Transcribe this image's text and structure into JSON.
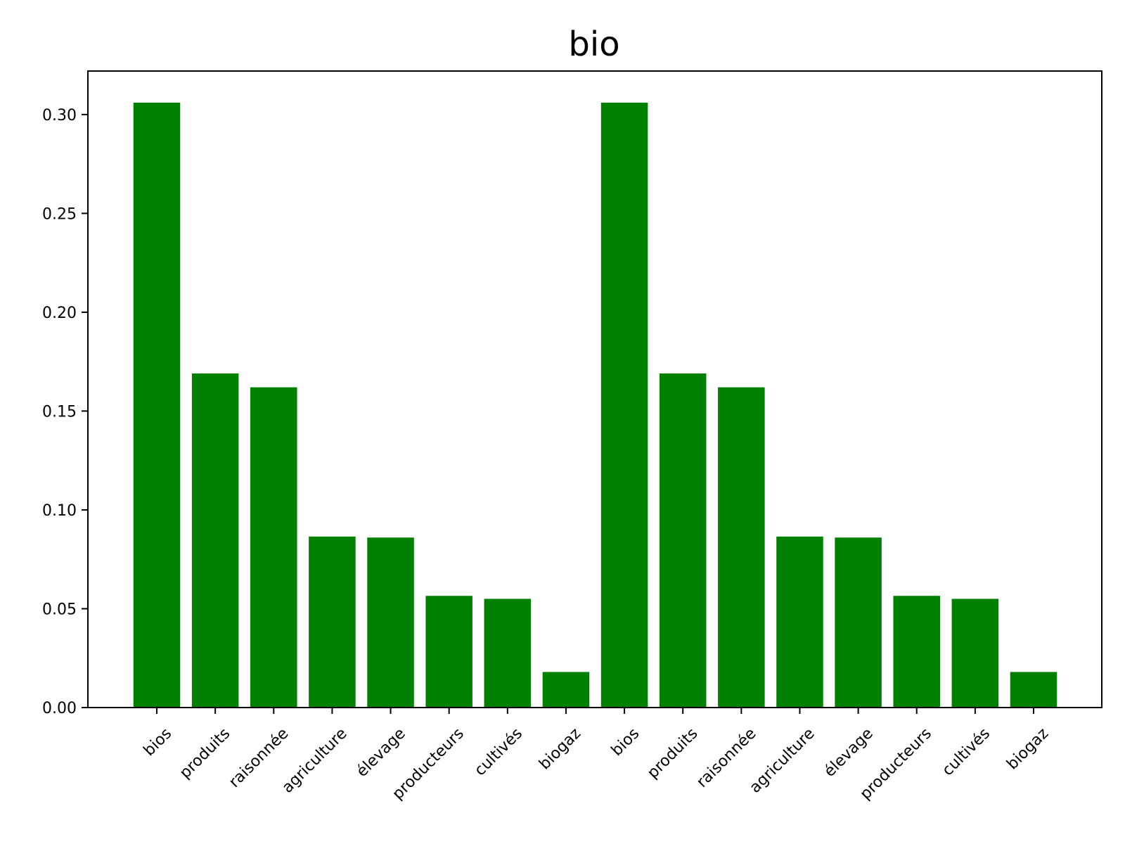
{
  "chart_data": {
    "type": "bar",
    "title": "bio",
    "xlabel": "",
    "ylabel": "",
    "categories": [
      "bios",
      "produits",
      "raisonnée",
      "agriculture",
      "élevage",
      "producteurs",
      "cultivés",
      "biogaz",
      "bios",
      "produits",
      "raisonnée",
      "agriculture",
      "élevage",
      "producteurs",
      "cultivés",
      "biogaz"
    ],
    "values": [
      0.306,
      0.169,
      0.162,
      0.0865,
      0.086,
      0.0565,
      0.055,
      0.018,
      0.306,
      0.169,
      0.162,
      0.0865,
      0.086,
      0.0565,
      0.055,
      0.018
    ],
    "ylim": [
      0,
      0.322
    ],
    "yticks": [
      0.0,
      0.05,
      0.1,
      0.15,
      0.2,
      0.25,
      0.3
    ],
    "ytick_labels": [
      "0.00",
      "0.05",
      "0.10",
      "0.15",
      "0.20",
      "0.25",
      "0.30"
    ],
    "bar_color": "#008000",
    "grid": false,
    "legend": "none"
  }
}
